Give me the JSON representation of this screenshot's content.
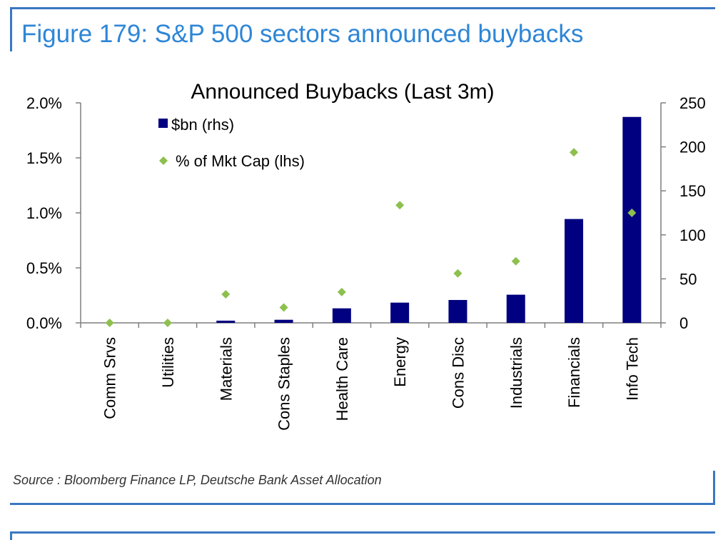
{
  "figure_title": "Figure 179: S&P 500 sectors announced buybacks",
  "source": "Source : Bloomberg Finance LP, Deutsche Bank Asset Allocation",
  "colors": {
    "frame": "#3a78c2",
    "title": "#2e86d6",
    "bar": "#000080",
    "diamond": "#8dc04e"
  },
  "chart_data": {
    "type": "bar",
    "title": "Announced Buybacks (Last 3m)",
    "categories": [
      "Comm Srvs",
      "Utilities",
      "Materials",
      "Cons Staples",
      "Health Care",
      "Energy",
      "Cons Disc",
      "Industrials",
      "Financials",
      "Info Tech"
    ],
    "series": [
      {
        "name": "$bn (rhs)",
        "type": "bar",
        "axis": "right",
        "values": [
          0,
          0,
          2.5,
          3.5,
          16.5,
          23,
          26,
          32,
          118,
          234
        ]
      },
      {
        "name": "% of Mkt Cap (lhs)",
        "type": "scatter",
        "marker": "diamond",
        "axis": "left",
        "values": [
          0.0,
          0.0,
          0.26,
          0.14,
          0.28,
          1.07,
          0.45,
          0.56,
          1.55,
          1.0
        ]
      }
    ],
    "y_left": {
      "ylim": [
        0,
        2.0
      ],
      "ticks": [
        "0.0%",
        "0.5%",
        "1.0%",
        "1.5%",
        "2.0%"
      ]
    },
    "y_right": {
      "ylim": [
        0,
        250
      ],
      "ticks": [
        "0",
        "50",
        "100",
        "150",
        "200",
        "250"
      ]
    },
    "legend": {
      "placement": "top-left"
    },
    "grid": false
  }
}
